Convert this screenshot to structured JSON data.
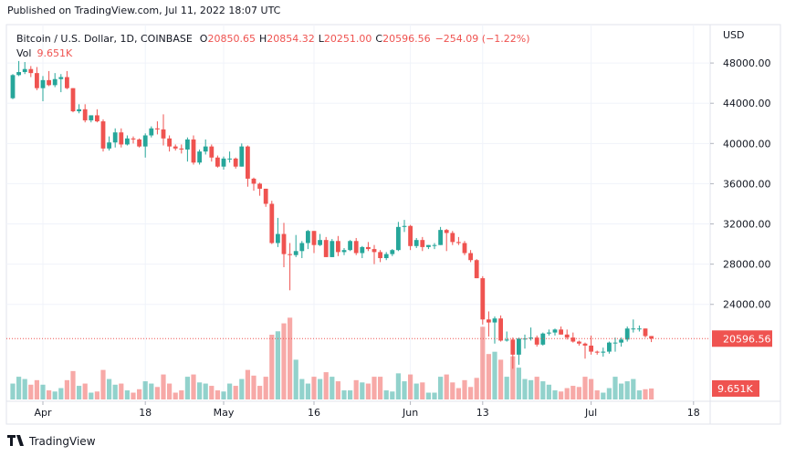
{
  "published": "Published on TradingView.com, Jul 11, 2022 18:07 UTC",
  "brand": "TradingView",
  "chart_data": {
    "type": "candlestick",
    "title": "Bitcoin / U.S. Dollar, 1D, COINBASE",
    "ohlc_header": [
      {
        "key": "O",
        "text": "20850.65"
      },
      {
        "key": "H",
        "text": "20854.32"
      },
      {
        "key": "L",
        "text": "20251.00"
      },
      {
        "key": "C",
        "text": "20596.56"
      }
    ],
    "change": "−254.09 (−1.22%)",
    "currency": "USD",
    "volume_name": "Vol",
    "up_color": "#26a69a",
    "down_color": "#ef5350",
    "x": [
      "2022-03-27",
      "2022-03-28",
      "2022-03-29",
      "2022-03-30",
      "2022-03-31",
      "2022-04-01",
      "2022-04-02",
      "2022-04-03",
      "2022-04-04",
      "2022-04-05",
      "2022-04-06",
      "2022-04-07",
      "2022-04-08",
      "2022-04-09",
      "2022-04-10",
      "2022-04-11",
      "2022-04-12",
      "2022-04-13",
      "2022-04-14",
      "2022-04-15",
      "2022-04-16",
      "2022-04-17",
      "2022-04-18",
      "2022-04-19",
      "2022-04-20",
      "2022-04-21",
      "2022-04-22",
      "2022-04-23",
      "2022-04-24",
      "2022-04-25",
      "2022-04-26",
      "2022-04-27",
      "2022-04-28",
      "2022-04-29",
      "2022-04-30",
      "2022-05-01",
      "2022-05-02",
      "2022-05-03",
      "2022-05-04",
      "2022-05-05",
      "2022-05-06",
      "2022-05-07",
      "2022-05-08",
      "2022-05-09",
      "2022-05-10",
      "2022-05-11",
      "2022-05-12",
      "2022-05-13",
      "2022-05-14",
      "2022-05-15",
      "2022-05-16",
      "2022-05-17",
      "2022-05-18",
      "2022-05-19",
      "2022-05-20",
      "2022-05-21",
      "2022-05-22",
      "2022-05-23",
      "2022-05-24",
      "2022-05-25",
      "2022-05-26",
      "2022-05-27",
      "2022-05-28",
      "2022-05-29",
      "2022-05-30",
      "2022-05-31",
      "2022-06-01",
      "2022-06-02",
      "2022-06-03",
      "2022-06-04",
      "2022-06-05",
      "2022-06-06",
      "2022-06-07",
      "2022-06-08",
      "2022-06-09",
      "2022-06-10",
      "2022-06-11",
      "2022-06-12",
      "2022-06-13",
      "2022-06-14",
      "2022-06-15",
      "2022-06-16",
      "2022-06-17",
      "2022-06-18",
      "2022-06-19",
      "2022-06-20",
      "2022-06-21",
      "2022-06-22",
      "2022-06-23",
      "2022-06-24",
      "2022-06-25",
      "2022-06-26",
      "2022-06-27",
      "2022-06-28",
      "2022-06-29",
      "2022-06-30",
      "2022-07-01",
      "2022-07-02",
      "2022-07-03",
      "2022-07-04",
      "2022-07-05",
      "2022-07-06",
      "2022-07-07",
      "2022-07-08",
      "2022-07-09",
      "2022-07-10",
      "2022-07-11"
    ],
    "open": [
      44500,
      46800,
      47100,
      47400,
      47000,
      45500,
      46300,
      45800,
      46400,
      46600,
      45500,
      43200,
      43400,
      42300,
      42800,
      42200,
      39500,
      40100,
      41100,
      39900,
      40500,
      40400,
      39700,
      40800,
      41500,
      41400,
      40500,
      39700,
      39500,
      39400,
      40400,
      38100,
      39200,
      39700,
      38600,
      37700,
      38500,
      38500,
      37700,
      39700,
      36500,
      36000,
      35500,
      34000,
      30100,
      31000,
      29000,
      28900,
      29300,
      30100,
      31300,
      29900,
      30400,
      28700,
      30300,
      29200,
      29400,
      30300,
      29100,
      29700,
      29500,
      29200,
      28600,
      29000,
      29400,
      31700,
      31800,
      29800,
      30400,
      29700,
      29900,
      29900,
      31400,
      31100,
      30200,
      30100,
      29100,
      28400,
      26600,
      22500,
      22200,
      22600,
      20400,
      20500,
      19000,
      20600,
      20600,
      20700,
      20000,
      21100,
      21200,
      21500,
      21000,
      20700,
      20300,
      20100,
      19900,
      19300,
      19200,
      19300,
      20200,
      20200,
      20500,
      21600,
      21600,
      21600,
      20850.65
    ],
    "high": [
      46900,
      48200,
      48100,
      47700,
      47600,
      46700,
      47200,
      47000,
      46900,
      47200,
      45500,
      43900,
      43900,
      42800,
      43400,
      42400,
      40700,
      41500,
      41500,
      40800,
      40700,
      40500,
      41000,
      41700,
      42200,
      42900,
      40800,
      39900,
      39900,
      40600,
      40800,
      39400,
      40400,
      39900,
      38800,
      38700,
      39200,
      38600,
      40000,
      39800,
      36600,
      36100,
      35500,
      34300,
      32600,
      32100,
      30100,
      30900,
      30300,
      31400,
      31300,
      31000,
      30700,
      30500,
      30800,
      29600,
      30400,
      30600,
      29800,
      30200,
      29900,
      29400,
      29200,
      29500,
      32200,
      32400,
      31900,
      30600,
      30700,
      29900,
      30100,
      31700,
      31500,
      31300,
      30700,
      30300,
      29400,
      28500,
      26800,
      23300,
      22800,
      22900,
      21300,
      20700,
      20700,
      21000,
      21700,
      20900,
      21200,
      21500,
      21600,
      21800,
      21500,
      21200,
      20400,
      20200,
      20900,
      19400,
      19700,
      20300,
      20700,
      20700,
      21800,
      22500,
      21900,
      21600,
      20854.32
    ],
    "low": [
      44400,
      46700,
      46900,
      46600,
      45300,
      44200,
      45700,
      45600,
      45100,
      45400,
      43100,
      43000,
      42100,
      42100,
      42100,
      39200,
      39300,
      39600,
      39600,
      39800,
      40000,
      39600,
      38600,
      40600,
      40900,
      39800,
      39200,
      39300,
      39000,
      38200,
      37900,
      37900,
      38900,
      38200,
      37600,
      37400,
      38100,
      37500,
      37700,
      35700,
      35300,
      34800,
      33700,
      30000,
      29700,
      27700,
      25400,
      28700,
      28600,
      29500,
      29100,
      29800,
      28700,
      28700,
      28800,
      28900,
      29300,
      28900,
      28600,
      29300,
      28000,
      28200,
      28400,
      28800,
      29300,
      31200,
      29400,
      29600,
      29300,
      29500,
      29500,
      29900,
      29300,
      29900,
      29900,
      28900,
      28200,
      26600,
      22000,
      20800,
      20100,
      20300,
      20300,
      17600,
      18000,
      19600,
      20400,
      19800,
      19900,
      20900,
      20900,
      21000,
      20500,
      20200,
      19900,
      18600,
      19000,
      19000,
      18800,
      19100,
      19300,
      19800,
      20300,
      21200,
      21300,
      20700,
      20251.0
    ],
    "close": [
      46800,
      47100,
      47400,
      47000,
      45500,
      46300,
      45800,
      46400,
      46600,
      45500,
      43200,
      43400,
      42300,
      42800,
      42200,
      39500,
      40100,
      41100,
      39900,
      40500,
      40400,
      39700,
      40800,
      41500,
      41400,
      40500,
      39700,
      39500,
      39400,
      40400,
      38100,
      39200,
      39700,
      38600,
      37700,
      38500,
      38500,
      37700,
      39700,
      36500,
      36000,
      35500,
      34000,
      30100,
      31000,
      29000,
      28900,
      29300,
      30100,
      31300,
      29900,
      30400,
      28700,
      30300,
      29200,
      29400,
      30300,
      29100,
      29700,
      29500,
      29200,
      28600,
      29000,
      29400,
      31700,
      31800,
      29800,
      30400,
      29700,
      29900,
      29900,
      31400,
      31100,
      30200,
      30100,
      29100,
      28400,
      26600,
      22500,
      22200,
      22600,
      20400,
      20500,
      19000,
      20600,
      20600,
      20700,
      20000,
      21100,
      21200,
      21500,
      21000,
      20700,
      20300,
      20100,
      19900,
      19300,
      19200,
      19300,
      20200,
      20200,
      20500,
      21600,
      21600,
      21600,
      20850.65,
      20596.56
    ],
    "volume": [
      14,
      20,
      18,
      13,
      17,
      13,
      8,
      7,
      10,
      17,
      25,
      12,
      14,
      6,
      7,
      26,
      18,
      13,
      14,
      8,
      6,
      9,
      16,
      14,
      11,
      22,
      14,
      6,
      8,
      20,
      22,
      15,
      14,
      12,
      8,
      7,
      14,
      12,
      18,
      26,
      21,
      12,
      20,
      57,
      60,
      67,
      72,
      35,
      18,
      14,
      20,
      18,
      24,
      20,
      16,
      8,
      8,
      17,
      15,
      14,
      20,
      20,
      8,
      7,
      23,
      16,
      22,
      14,
      15,
      6,
      6,
      20,
      22,
      15,
      10,
      17,
      11,
      19,
      64,
      40,
      42,
      35,
      20,
      38,
      28,
      18,
      17,
      20,
      16,
      13,
      8,
      7,
      10,
      12,
      11,
      20,
      18,
      8,
      6,
      10,
      20,
      14,
      16,
      18,
      8,
      9,
      9.651
    ],
    "last_price": 20596.56,
    "last_volume": {
      "value": 9.651,
      "label": "9.651K"
    },
    "xlim": [
      "2022-03-26",
      "2022-07-20"
    ],
    "xticks": [
      {
        "value": "2022-04-01",
        "label": "Apr"
      },
      {
        "value": "2022-04-18",
        "label": "18"
      },
      {
        "value": "2022-05-01",
        "label": "May"
      },
      {
        "value": "2022-05-16",
        "label": "16"
      },
      {
        "value": "2022-06-01",
        "label": "Jun"
      },
      {
        "value": "2022-06-13",
        "label": "13"
      },
      {
        "value": "2022-07-01",
        "label": "Jul"
      },
      {
        "value": "2022-07-18",
        "label": "18"
      }
    ],
    "ylim": [
      14545,
      51818
    ],
    "yticks": [
      {
        "value": 24000,
        "label": "24000.00"
      },
      {
        "value": 28000,
        "label": "28000.00"
      },
      {
        "value": 32000,
        "label": "32000.00"
      },
      {
        "value": 36000,
        "label": "36000.00"
      },
      {
        "value": 40000,
        "label": "40000.00"
      },
      {
        "value": 44000,
        "label": "44000.00"
      },
      {
        "value": 48000,
        "label": "48000.00"
      }
    ],
    "y2lim": [
      0,
      330
    ],
    "grid": true
  }
}
